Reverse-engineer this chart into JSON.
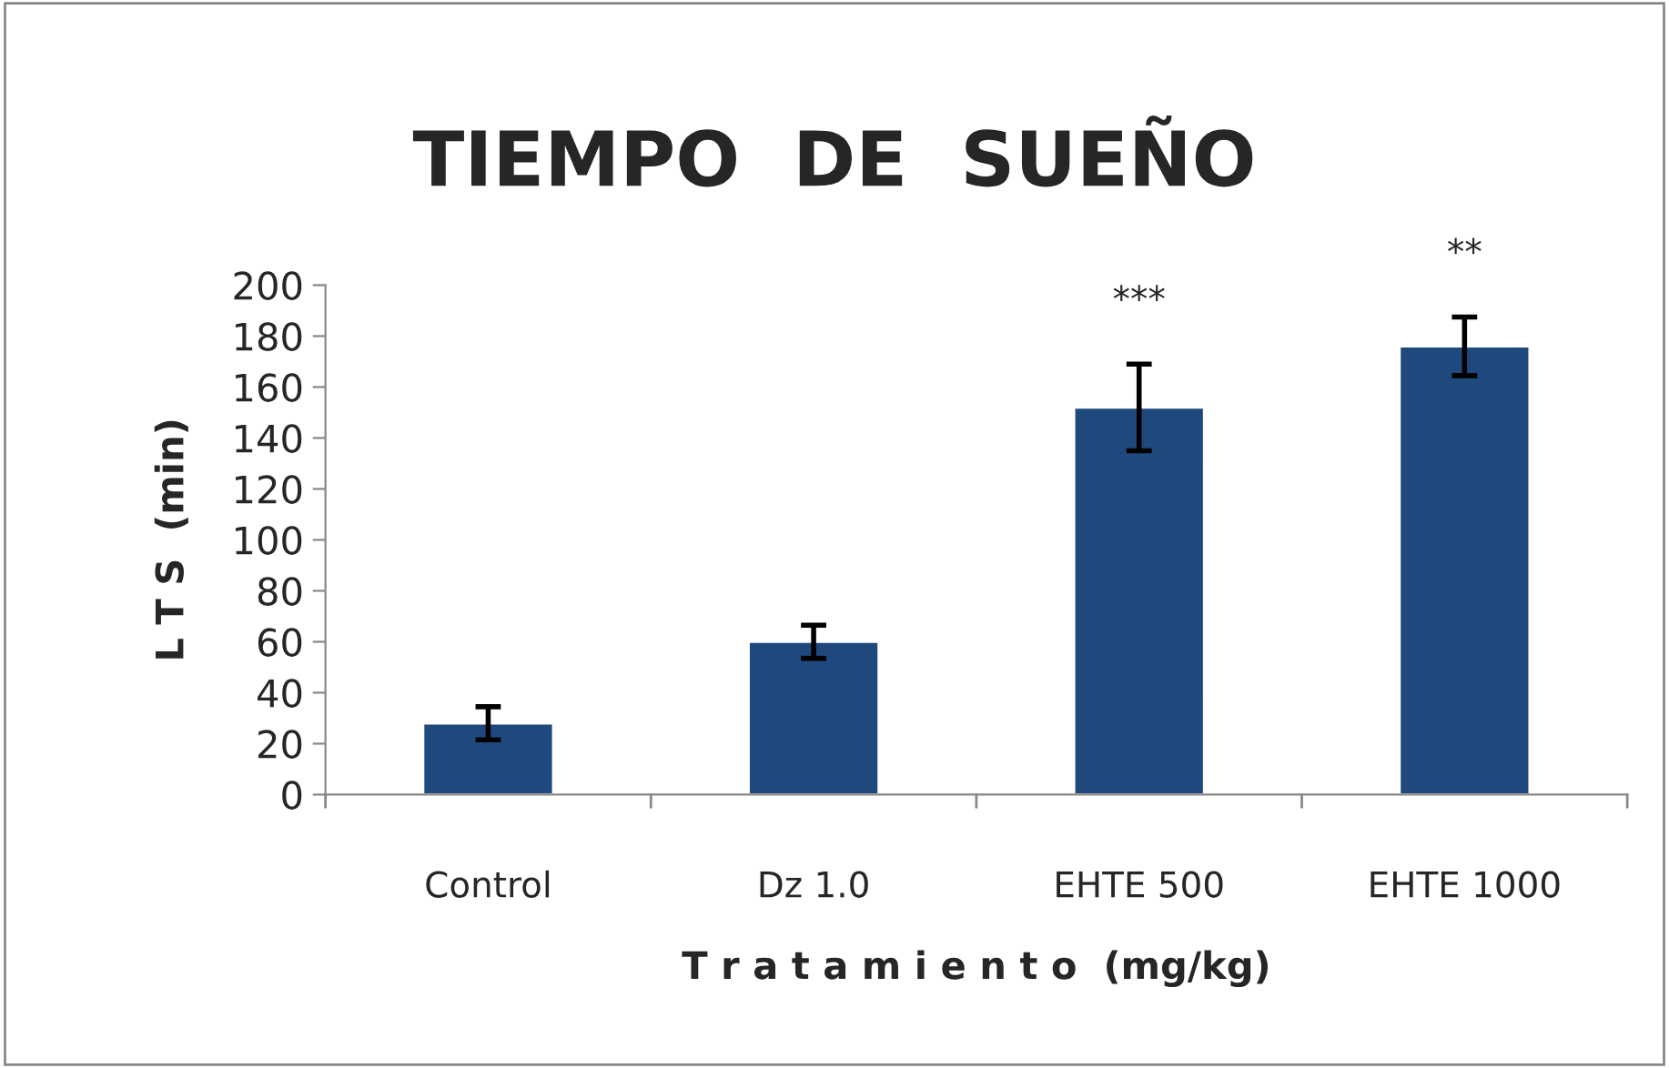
{
  "chart_data": {
    "type": "bar",
    "title": "TIEMPO  DE  SUEÑO",
    "xlabel": "T r a t a m i e n t o  (mg/kg)",
    "ylabel": "L T S  (min)",
    "categories": [
      "Control",
      "Dz 1.0",
      "EHTE 500",
      "EHTE 1000"
    ],
    "values": [
      28,
      60,
      152,
      176
    ],
    "errors": [
      6.5,
      6.5,
      17,
      11.5
    ],
    "color": "#1f497d",
    "ylim": [
      0,
      200
    ],
    "yticks": [
      0,
      20,
      40,
      60,
      80,
      100,
      120,
      140,
      160,
      180,
      200
    ],
    "grid": false,
    "legend": false,
    "annotations": [
      "***",
      "**"
    ]
  }
}
